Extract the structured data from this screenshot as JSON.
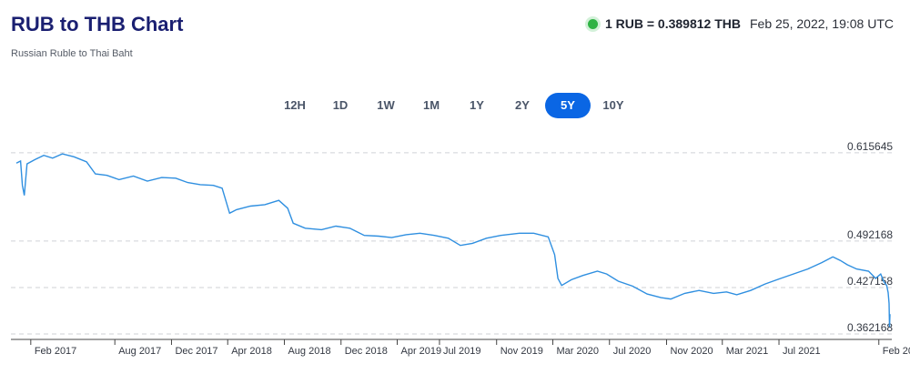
{
  "header": {
    "title": "RUB to THB Chart",
    "subtitle": "Russian Ruble to Thai Baht",
    "rate_text": "1 RUB = 0.389812 THB",
    "timestamp": "Feb 25, 2022, 19:08 UTC",
    "status_color": "#2fb344"
  },
  "tabs": [
    {
      "label": "12H",
      "active": false
    },
    {
      "label": "1D",
      "active": false
    },
    {
      "label": "1W",
      "active": false
    },
    {
      "label": "1M",
      "active": false
    },
    {
      "label": "1Y",
      "active": false
    },
    {
      "label": "2Y",
      "active": false
    },
    {
      "label": "5Y",
      "active": true
    },
    {
      "label": "10Y",
      "active": false
    }
  ],
  "chart_data": {
    "type": "line",
    "line_color": "#2f8fe0",
    "grid": true,
    "y_axis_position": "right",
    "ylim": [
      0.3622,
      0.6256
    ],
    "yticks": [
      {
        "value": 0.615645,
        "label": "0.615645"
      },
      {
        "value": 0.492168,
        "label": "0.492168"
      },
      {
        "value": 0.427158,
        "label": "0.427158"
      },
      {
        "value": 0.362168,
        "label": "0.362168"
      }
    ],
    "xticks": [
      {
        "date": "2017-02-01",
        "label": "Feb 2017"
      },
      {
        "date": "2017-08-01",
        "label": "Aug 2017"
      },
      {
        "date": "2017-12-01",
        "label": "Dec 2017"
      },
      {
        "date": "2018-04-01",
        "label": "Apr 2018"
      },
      {
        "date": "2018-08-01",
        "label": "Aug 2018"
      },
      {
        "date": "2018-12-01",
        "label": "Dec 2018"
      },
      {
        "date": "2019-04-01",
        "label": "Apr 2019"
      },
      {
        "date": "2019-07-01",
        "label": "Jul 2019"
      },
      {
        "date": "2019-11-01",
        "label": "Nov 2019"
      },
      {
        "date": "2020-03-01",
        "label": "Mar 2020"
      },
      {
        "date": "2020-07-01",
        "label": "Jul 2020"
      },
      {
        "date": "2020-11-01",
        "label": "Nov 2020"
      },
      {
        "date": "2021-03-01",
        "label": "Mar 2021"
      },
      {
        "date": "2021-07-01",
        "label": "Jul 2021"
      },
      {
        "date": "2022-02-01",
        "label": "Feb 2022"
      }
    ],
    "xlim": [
      "2017-01-01",
      "2022-02-25"
    ],
    "series": [
      {
        "points": [
          [
            "2017-01-01",
            0.601
          ],
          [
            "2017-01-10",
            0.604
          ],
          [
            "2017-01-14",
            0.57
          ],
          [
            "2017-01-18",
            0.556
          ],
          [
            "2017-01-24",
            0.6
          ],
          [
            "2017-02-10",
            0.606
          ],
          [
            "2017-03-01",
            0.612
          ],
          [
            "2017-03-20",
            0.608
          ],
          [
            "2017-04-10",
            0.614
          ],
          [
            "2017-05-05",
            0.61
          ],
          [
            "2017-06-01",
            0.603
          ],
          [
            "2017-06-20",
            0.586
          ],
          [
            "2017-07-15",
            0.584
          ],
          [
            "2017-08-10",
            0.578
          ],
          [
            "2017-09-10",
            0.583
          ],
          [
            "2017-10-10",
            0.576
          ],
          [
            "2017-11-10",
            0.581
          ],
          [
            "2017-12-10",
            0.58
          ],
          [
            "2018-01-05",
            0.574
          ],
          [
            "2018-02-01",
            0.571
          ],
          [
            "2018-03-01",
            0.57
          ],
          [
            "2018-03-20",
            0.566
          ],
          [
            "2018-04-05",
            0.531
          ],
          [
            "2018-04-20",
            0.536
          ],
          [
            "2018-05-20",
            0.541
          ],
          [
            "2018-06-20",
            0.543
          ],
          [
            "2018-07-20",
            0.549
          ],
          [
            "2018-08-08",
            0.538
          ],
          [
            "2018-08-20",
            0.517
          ],
          [
            "2018-09-15",
            0.51
          ],
          [
            "2018-10-20",
            0.508
          ],
          [
            "2018-11-20",
            0.513
          ],
          [
            "2018-12-20",
            0.51
          ],
          [
            "2019-01-20",
            0.5
          ],
          [
            "2019-02-20",
            0.499
          ],
          [
            "2019-03-20",
            0.497
          ],
          [
            "2019-04-20",
            0.501
          ],
          [
            "2019-05-20",
            0.503
          ],
          [
            "2019-06-20",
            0.5
          ],
          [
            "2019-07-20",
            0.496
          ],
          [
            "2019-08-15",
            0.486
          ],
          [
            "2019-09-10",
            0.489
          ],
          [
            "2019-10-10",
            0.496
          ],
          [
            "2019-11-10",
            0.5
          ],
          [
            "2019-12-20",
            0.503
          ],
          [
            "2020-01-20",
            0.503
          ],
          [
            "2020-02-20",
            0.498
          ],
          [
            "2020-03-05",
            0.473
          ],
          [
            "2020-03-12",
            0.44
          ],
          [
            "2020-03-20",
            0.43
          ],
          [
            "2020-04-10",
            0.438
          ],
          [
            "2020-05-05",
            0.444
          ],
          [
            "2020-06-05",
            0.45
          ],
          [
            "2020-06-25",
            0.446
          ],
          [
            "2020-07-20",
            0.436
          ],
          [
            "2020-08-20",
            0.429
          ],
          [
            "2020-09-20",
            0.418
          ],
          [
            "2020-10-20",
            0.413
          ],
          [
            "2020-11-10",
            0.411
          ],
          [
            "2020-12-10",
            0.419
          ],
          [
            "2021-01-10",
            0.423
          ],
          [
            "2021-02-10",
            0.419
          ],
          [
            "2021-03-10",
            0.421
          ],
          [
            "2021-04-01",
            0.417
          ],
          [
            "2021-05-01",
            0.423
          ],
          [
            "2021-06-01",
            0.432
          ],
          [
            "2021-07-01",
            0.439
          ],
          [
            "2021-08-01",
            0.446
          ],
          [
            "2021-09-01",
            0.453
          ],
          [
            "2021-10-01",
            0.462
          ],
          [
            "2021-10-25",
            0.47
          ],
          [
            "2021-11-10",
            0.465
          ],
          [
            "2021-11-25",
            0.459
          ],
          [
            "2021-12-15",
            0.453
          ],
          [
            "2022-01-10",
            0.45
          ],
          [
            "2022-01-25",
            0.44
          ],
          [
            "2022-02-05",
            0.446
          ],
          [
            "2022-02-12",
            0.435
          ],
          [
            "2022-02-18",
            0.43
          ],
          [
            "2022-02-21",
            0.42
          ],
          [
            "2022-02-23",
            0.405
          ],
          [
            "2022-02-24",
            0.372
          ],
          [
            "2022-02-25",
            0.39
          ]
        ]
      }
    ]
  }
}
